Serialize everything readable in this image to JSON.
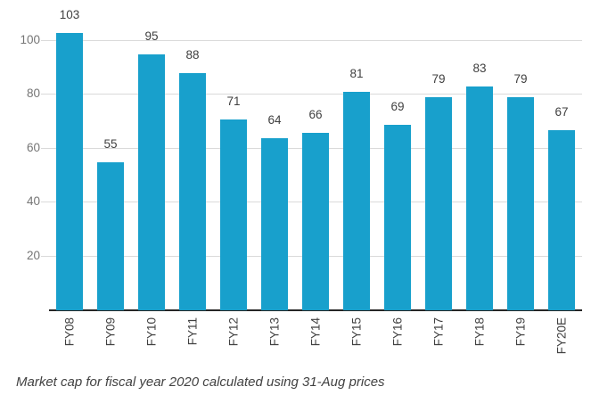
{
  "chart_data": {
    "type": "bar",
    "categories": [
      "FY08",
      "FY09",
      "FY10",
      "FY11",
      "FY12",
      "FY13",
      "FY14",
      "FY15",
      "FY16",
      "FY17",
      "FY18",
      "FY19",
      "FY20E"
    ],
    "values": [
      103,
      55,
      95,
      88,
      71,
      64,
      66,
      81,
      69,
      79,
      83,
      79,
      67
    ],
    "yticks": [
      20,
      40,
      60,
      80,
      100
    ],
    "ylim": [
      0,
      115
    ],
    "grid": true,
    "legend": false,
    "value_labels_shown": true,
    "caption": "Market cap for fiscal year 2020 calculated using 31-Aug prices"
  },
  "colors": {
    "bar": "#18a0cc",
    "gridline": "#dadada",
    "axis_line": "#262626",
    "y_tick_label": "#757575",
    "value_label": "#404040",
    "x_tick_label": "#404040",
    "caption": "#424242",
    "background": "#ffffff"
  }
}
